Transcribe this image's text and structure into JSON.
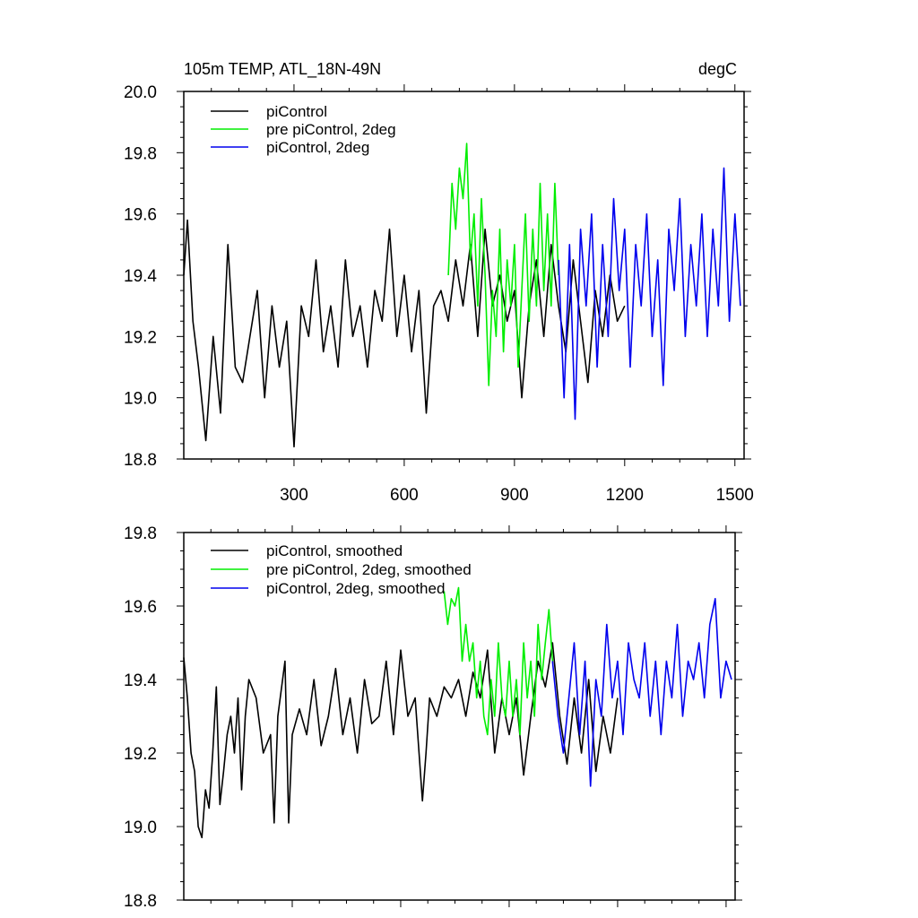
{
  "chart_data": [
    {
      "type": "line",
      "title": "105m TEMP, ATL_18N-49N",
      "units": "degC",
      "xlabel": "",
      "ylabel": "",
      "xlim": [
        0,
        1525
      ],
      "ylim": [
        18.8,
        20.0
      ],
      "xticks": [
        300,
        600,
        900,
        1200,
        1500
      ],
      "xtick_labels": [
        "300",
        "600",
        "900",
        "1200",
        "1500"
      ],
      "yticks": [
        18.8,
        19.0,
        19.2,
        19.4,
        19.6,
        19.8,
        20.0
      ],
      "ytick_labels": [
        "18.8",
        "19.0",
        "19.2",
        "19.4",
        "19.6",
        "19.8",
        "20.0"
      ],
      "legend_position": "top-left",
      "series": [
        {
          "name": "piControl",
          "color": "#000000",
          "x": [
            0,
            10,
            25,
            40,
            60,
            80,
            100,
            120,
            140,
            160,
            180,
            200,
            220,
            240,
            260,
            280,
            300,
            320,
            340,
            360,
            380,
            400,
            420,
            440,
            460,
            480,
            500,
            520,
            540,
            560,
            580,
            600,
            620,
            640,
            660,
            680,
            700,
            720,
            740,
            760,
            780,
            800,
            820,
            840,
            860,
            880,
            900,
            920,
            940,
            960,
            980,
            1000,
            1020,
            1040,
            1060,
            1080,
            1100,
            1120,
            1140,
            1160,
            1180,
            1200
          ],
          "y": [
            19.4,
            19.58,
            19.25,
            19.1,
            18.86,
            19.2,
            18.95,
            19.5,
            19.1,
            19.05,
            19.2,
            19.35,
            19.0,
            19.3,
            19.1,
            19.25,
            18.84,
            19.3,
            19.2,
            19.45,
            19.15,
            19.3,
            19.1,
            19.45,
            19.2,
            19.3,
            19.1,
            19.35,
            19.25,
            19.55,
            19.2,
            19.4,
            19.15,
            19.35,
            18.95,
            19.3,
            19.35,
            19.25,
            19.45,
            19.3,
            19.5,
            19.2,
            19.55,
            19.3,
            19.4,
            19.25,
            19.35,
            19.0,
            19.3,
            19.45,
            19.2,
            19.5,
            19.3,
            19.15,
            19.45,
            19.25,
            19.05,
            19.35,
            19.2,
            19.4,
            19.25,
            19.3
          ]
        },
        {
          "name": "pre piControl, 2deg",
          "color": "#00ee00",
          "x": [
            720,
            730,
            740,
            750,
            760,
            770,
            780,
            790,
            800,
            810,
            820,
            830,
            840,
            850,
            860,
            870,
            880,
            890,
            900,
            910,
            920,
            930,
            940,
            950,
            960,
            970,
            980,
            990,
            1000,
            1010,
            1020
          ],
          "y": [
            19.4,
            19.7,
            19.55,
            19.75,
            19.65,
            19.83,
            19.45,
            19.6,
            19.3,
            19.65,
            19.4,
            19.04,
            19.35,
            19.2,
            19.55,
            19.15,
            19.45,
            19.3,
            19.5,
            19.1,
            19.35,
            19.6,
            19.25,
            19.55,
            19.3,
            19.7,
            19.35,
            19.6,
            19.3,
            19.7,
            19.4
          ]
        },
        {
          "name": "piControl, 2deg",
          "color": "#0000ee",
          "x": [
            1020,
            1035,
            1050,
            1065,
            1080,
            1095,
            1110,
            1125,
            1140,
            1155,
            1170,
            1185,
            1200,
            1215,
            1230,
            1245,
            1260,
            1275,
            1290,
            1305,
            1320,
            1335,
            1350,
            1365,
            1380,
            1395,
            1410,
            1425,
            1440,
            1455,
            1470,
            1485,
            1500,
            1515
          ],
          "y": [
            19.45,
            19.0,
            19.5,
            18.93,
            19.55,
            19.3,
            19.6,
            19.1,
            19.5,
            19.2,
            19.65,
            19.35,
            19.55,
            19.1,
            19.5,
            19.3,
            19.6,
            19.2,
            19.45,
            19.04,
            19.55,
            19.35,
            19.65,
            19.2,
            19.5,
            19.3,
            19.6,
            19.2,
            19.55,
            19.3,
            19.75,
            19.25,
            19.6,
            19.3
          ]
        }
      ]
    },
    {
      "type": "line",
      "title": "",
      "xlabel": "",
      "ylabel": "",
      "xlim": [
        0,
        1525
      ],
      "ylim": [
        18.8,
        19.8
      ],
      "xticks": [
        300,
        600,
        900,
        1200,
        1500
      ],
      "xtick_labels": [],
      "yticks": [
        18.8,
        19.0,
        19.2,
        19.4,
        19.6,
        19.8
      ],
      "ytick_labels": [
        "18.8",
        "19.0",
        "19.2",
        "19.4",
        "19.6",
        "19.8"
      ],
      "legend_position": "top-left",
      "series": [
        {
          "name": "piControl, smoothed",
          "color": "#000000",
          "x": [
            0,
            10,
            20,
            30,
            40,
            50,
            60,
            70,
            80,
            90,
            100,
            110,
            120,
            130,
            140,
            150,
            160,
            170,
            180,
            200,
            220,
            240,
            250,
            260,
            280,
            290,
            300,
            320,
            340,
            360,
            380,
            400,
            420,
            440,
            460,
            480,
            500,
            520,
            540,
            560,
            580,
            600,
            620,
            640,
            660,
            670,
            680,
            700,
            720,
            740,
            760,
            780,
            800,
            820,
            840,
            860,
            880,
            900,
            920,
            940,
            960,
            980,
            1000,
            1020,
            1040,
            1060,
            1080,
            1100,
            1120,
            1140,
            1160,
            1180,
            1200
          ],
          "y": [
            19.46,
            19.35,
            19.2,
            19.15,
            19.0,
            18.97,
            19.1,
            19.05,
            19.2,
            19.38,
            19.06,
            19.15,
            19.25,
            19.3,
            19.2,
            19.35,
            19.1,
            19.3,
            19.4,
            19.35,
            19.2,
            19.25,
            19.01,
            19.3,
            19.45,
            19.01,
            19.25,
            19.32,
            19.25,
            19.4,
            19.22,
            19.3,
            19.43,
            19.25,
            19.35,
            19.2,
            19.4,
            19.28,
            19.3,
            19.45,
            19.25,
            19.48,
            19.3,
            19.35,
            19.07,
            19.2,
            19.35,
            19.3,
            19.38,
            19.35,
            19.4,
            19.3,
            19.42,
            19.35,
            19.48,
            19.2,
            19.35,
            19.25,
            19.35,
            19.14,
            19.3,
            19.45,
            19.38,
            19.5,
            19.3,
            19.17,
            19.35,
            19.2,
            19.4,
            19.15,
            19.3,
            19.2,
            19.35
          ]
        },
        {
          "name": "pre piControl, 2deg, smoothed",
          "color": "#00ee00",
          "x": [
            720,
            730,
            740,
            750,
            760,
            770,
            780,
            790,
            800,
            810,
            820,
            830,
            840,
            850,
            860,
            870,
            880,
            890,
            900,
            910,
            920,
            930,
            940,
            950,
            960,
            970,
            980,
            990,
            1000,
            1010,
            1020
          ],
          "y": [
            19.64,
            19.55,
            19.62,
            19.6,
            19.65,
            19.45,
            19.55,
            19.45,
            19.5,
            19.35,
            19.45,
            19.3,
            19.25,
            19.4,
            19.3,
            19.5,
            19.35,
            19.3,
            19.45,
            19.3,
            19.4,
            19.25,
            19.5,
            19.35,
            19.45,
            19.3,
            19.55,
            19.4,
            19.5,
            19.59,
            19.45
          ]
        },
        {
          "name": "piControl, 2deg, smoothed",
          "color": "#0000ee",
          "x": [
            1020,
            1035,
            1050,
            1065,
            1080,
            1095,
            1110,
            1125,
            1140,
            1155,
            1170,
            1185,
            1200,
            1215,
            1230,
            1245,
            1260,
            1275,
            1290,
            1305,
            1320,
            1335,
            1350,
            1365,
            1380,
            1395,
            1410,
            1425,
            1440,
            1455,
            1470,
            1485,
            1500,
            1515
          ],
          "y": [
            19.45,
            19.3,
            19.2,
            19.35,
            19.5,
            19.25,
            19.45,
            19.11,
            19.4,
            19.3,
            19.55,
            19.35,
            19.45,
            19.25,
            19.5,
            19.4,
            19.35,
            19.5,
            19.3,
            19.45,
            19.25,
            19.45,
            19.35,
            19.55,
            19.3,
            19.45,
            19.4,
            19.5,
            19.35,
            19.55,
            19.62,
            19.35,
            19.45,
            19.4
          ]
        }
      ]
    }
  ]
}
